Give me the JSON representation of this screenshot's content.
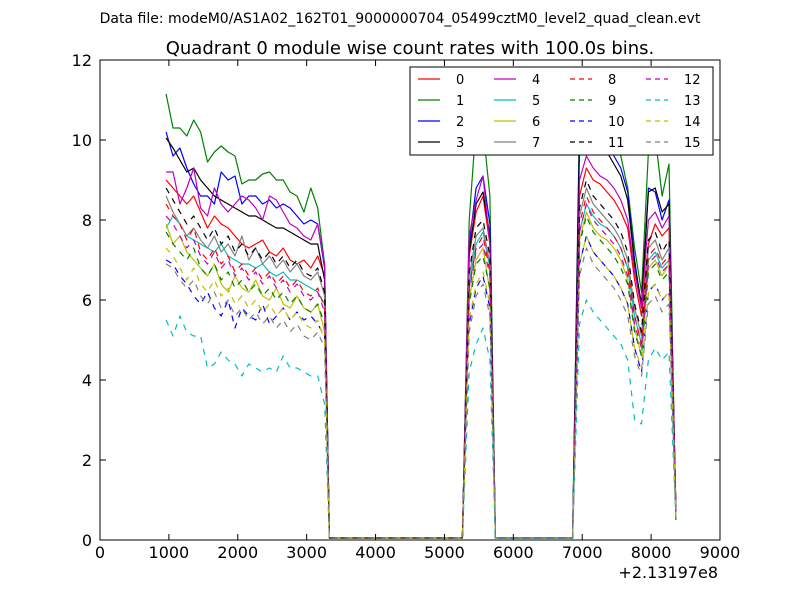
{
  "suptitle": "Data file: modeM0/AS1A02_162T01_9000000704_05499cztM0_level2_quad_clean.evt",
  "chart_data": {
    "type": "line",
    "title": "Quadrant 0 module wise count rates with 100.0s bins.",
    "xlabel": "",
    "ylabel": "",
    "x_offset_label": "+2.13197e8",
    "xlim": [
      0,
      9000
    ],
    "ylim": [
      0,
      12
    ],
    "xticks": [
      0,
      1000,
      2000,
      3000,
      4000,
      5000,
      6000,
      7000,
      8000,
      9000
    ],
    "yticks": [
      0,
      2,
      4,
      6,
      8,
      10,
      12
    ],
    "grid": false,
    "legend_position": "top-right",
    "x": [
      960,
      1060,
      1160,
      1260,
      1360,
      1460,
      1560,
      1660,
      1760,
      1860,
      1960,
      2060,
      2160,
      2260,
      2360,
      2460,
      2560,
      2660,
      2760,
      2860,
      2960,
      3060,
      3160,
      3260,
      3330,
      3380,
      5260,
      5360,
      5460,
      5560,
      5660,
      5740,
      6860,
      6960,
      7060,
      7160,
      7260,
      7360,
      7460,
      7560,
      7660,
      7760,
      7860,
      7960,
      8060,
      8160,
      8260,
      8360
    ],
    "series": [
      {
        "name": "0",
        "color": "#ff0000",
        "dash": "solid",
        "values": [
          9.0,
          8.8,
          8.6,
          8.4,
          8.6,
          8.2,
          7.8,
          8.1,
          7.9,
          7.8,
          7.6,
          7.4,
          7.3,
          7.4,
          7.5,
          7.2,
          7.1,
          7.3,
          7.0,
          6.9,
          7.0,
          6.8,
          7.1,
          6.6,
          0.05,
          0.05,
          0.05,
          7.1,
          8.2,
          8.6,
          7.4,
          0.05,
          0.05,
          8.6,
          9.3,
          9.0,
          8.9,
          8.7,
          8.5,
          8.2,
          7.8,
          6.5,
          5.6,
          7.4,
          7.9,
          7.6,
          7.8,
          0.8
        ]
      },
      {
        "name": "1",
        "color": "#008000",
        "dash": "solid",
        "values": [
          11.15,
          10.3,
          10.3,
          10.1,
          10.5,
          10.2,
          9.45,
          9.7,
          9.85,
          9.7,
          9.6,
          8.9,
          9.0,
          9.0,
          9.15,
          9.2,
          9.0,
          9.0,
          8.7,
          8.6,
          8.2,
          8.8,
          8.3,
          6.9,
          0.05,
          0.05,
          0.05,
          8.0,
          10.4,
          10.3,
          8.6,
          0.05,
          0.05,
          10.6,
          11.2,
          10.7,
          10.5,
          10.4,
          10.0,
          9.6,
          8.8,
          7.3,
          6.2,
          9.7,
          10.1,
          8.6,
          9.4,
          0.5
        ]
      },
      {
        "name": "2",
        "color": "#0000ff",
        "dash": "solid",
        "values": [
          10.2,
          9.6,
          9.8,
          9.3,
          8.9,
          8.6,
          8.6,
          8.4,
          9.2,
          9.0,
          9.1,
          8.4,
          8.6,
          8.6,
          8.4,
          8.5,
          8.3,
          8.4,
          8.3,
          8.1,
          7.9,
          8.0,
          7.9,
          6.8,
          0.05,
          0.05,
          0.05,
          7.4,
          8.8,
          9.1,
          7.9,
          0.05,
          0.05,
          10.2,
          10.9,
          10.3,
          10.1,
          9.9,
          9.6,
          9.3,
          8.7,
          7.0,
          5.8,
          8.8,
          8.7,
          8.0,
          8.5,
          0.7
        ]
      },
      {
        "name": "3",
        "color": "#000000",
        "dash": "solid",
        "values": [
          10.05,
          9.8,
          9.5,
          9.2,
          9.3,
          9.0,
          8.8,
          8.6,
          8.5,
          8.4,
          8.3,
          8.2,
          8.1,
          8.1,
          8.0,
          7.9,
          7.8,
          7.8,
          7.7,
          7.6,
          7.5,
          7.4,
          7.4,
          6.5,
          0.05,
          0.05,
          0.05,
          7.2,
          8.4,
          8.7,
          7.6,
          0.05,
          0.05,
          9.9,
          10.5,
          10.1,
          9.9,
          9.7,
          9.4,
          9.1,
          8.5,
          6.9,
          5.9,
          8.7,
          8.8,
          8.2,
          8.4,
          0.7
        ]
      },
      {
        "name": "4",
        "color": "#bf00bf",
        "dash": "solid",
        "values": [
          9.2,
          9.2,
          8.4,
          8.8,
          9.3,
          8.3,
          8.1,
          8.8,
          8.4,
          8.2,
          8.4,
          8.6,
          8.5,
          8.3,
          8.0,
          8.6,
          8.5,
          8.2,
          7.9,
          7.8,
          7.6,
          7.5,
          7.9,
          6.9,
          0.05,
          0.05,
          0.05,
          7.6,
          8.5,
          9.1,
          7.4,
          0.05,
          0.05,
          9.0,
          9.6,
          9.3,
          9.1,
          9.0,
          8.8,
          8.5,
          8.0,
          6.7,
          5.8,
          8.0,
          8.2,
          7.8,
          8.1,
          0.8
        ]
      },
      {
        "name": "5",
        "color": "#00bfbf",
        "dash": "solid",
        "values": [
          7.8,
          8.1,
          7.9,
          7.6,
          7.5,
          7.4,
          7.3,
          7.2,
          7.4,
          7.1,
          7.0,
          6.9,
          6.9,
          6.8,
          6.9,
          6.7,
          6.6,
          6.7,
          6.5,
          6.5,
          6.4,
          6.3,
          6.2,
          5.9,
          0.05,
          0.05,
          0.05,
          6.4,
          7.4,
          7.7,
          6.8,
          0.05,
          0.05,
          7.7,
          8.4,
          8.1,
          7.9,
          7.8,
          7.6,
          7.3,
          6.8,
          5.6,
          4.9,
          7.0,
          7.2,
          6.8,
          7.0,
          0.7
        ]
      },
      {
        "name": "6",
        "color": "#bfbf00",
        "dash": "solid",
        "values": [
          7.9,
          7.4,
          7.6,
          7.2,
          7.0,
          6.8,
          6.6,
          6.9,
          6.4,
          6.2,
          6.6,
          6.3,
          6.2,
          6.5,
          6.1,
          6.0,
          6.3,
          5.9,
          5.8,
          6.1,
          5.8,
          5.7,
          5.9,
          5.2,
          0.05,
          0.05,
          0.05,
          6.0,
          7.0,
          7.3,
          6.2,
          0.05,
          0.05,
          7.5,
          8.2,
          7.8,
          7.6,
          7.5,
          7.3,
          7.0,
          6.5,
          5.3,
          4.6,
          6.8,
          7.0,
          6.6,
          6.9,
          0.6
        ]
      },
      {
        "name": "7",
        "color": "#808080",
        "dash": "solid",
        "values": [
          8.6,
          8.2,
          7.9,
          7.6,
          7.8,
          7.5,
          7.3,
          7.6,
          7.2,
          7.4,
          7.1,
          7.6,
          7.0,
          7.3,
          6.9,
          7.1,
          6.8,
          7.0,
          6.7,
          6.9,
          6.6,
          6.5,
          6.7,
          6.1,
          0.05,
          0.05,
          0.05,
          6.6,
          7.6,
          7.8,
          6.9,
          0.05,
          0.05,
          8.1,
          8.8,
          8.4,
          8.2,
          8.0,
          7.8,
          7.5,
          7.0,
          5.8,
          5.1,
          7.3,
          7.5,
          7.0,
          7.3,
          0.7
        ]
      },
      {
        "name": "8",
        "color": "#ff0000",
        "dash": "dashed",
        "values": [
          8.4,
          8.1,
          7.9,
          7.5,
          7.8,
          7.2,
          7.0,
          7.3,
          6.9,
          7.1,
          6.7,
          6.9,
          6.6,
          6.8,
          6.5,
          6.7,
          6.4,
          6.6,
          6.3,
          6.5,
          6.2,
          6.1,
          6.3,
          5.8,
          0.05,
          0.05,
          0.05,
          6.3,
          7.3,
          7.6,
          6.7,
          0.05,
          0.05,
          7.9,
          8.6,
          8.2,
          8.0,
          7.8,
          7.6,
          7.3,
          6.8,
          5.6,
          4.9,
          7.1,
          7.3,
          6.9,
          7.1,
          0.7
        ]
      },
      {
        "name": "9",
        "color": "#008000",
        "dash": "dashed",
        "values": [
          7.7,
          7.4,
          7.2,
          7.0,
          7.3,
          6.8,
          6.6,
          6.9,
          6.5,
          6.7,
          6.3,
          6.5,
          6.2,
          6.4,
          6.1,
          6.3,
          6.0,
          6.2,
          5.9,
          6.1,
          5.8,
          5.7,
          5.9,
          5.4,
          0.05,
          0.05,
          0.05,
          5.9,
          6.9,
          7.1,
          6.3,
          0.05,
          0.05,
          7.4,
          8.1,
          7.7,
          7.5,
          7.3,
          7.1,
          6.8,
          6.4,
          5.2,
          4.6,
          6.7,
          6.9,
          6.5,
          6.7,
          0.6
        ]
      },
      {
        "name": "10",
        "color": "#0000ff",
        "dash": "dashed",
        "values": [
          7.0,
          6.9,
          6.6,
          6.4,
          6.1,
          5.9,
          6.2,
          5.8,
          5.6,
          6.0,
          5.3,
          5.8,
          5.6,
          5.5,
          5.9,
          5.4,
          5.6,
          5.8,
          5.5,
          5.7,
          5.5,
          5.6,
          5.4,
          5.1,
          0.05,
          0.05,
          0.05,
          5.4,
          6.3,
          6.6,
          5.8,
          0.05,
          0.05,
          6.9,
          7.6,
          7.2,
          7.0,
          6.8,
          6.6,
          6.3,
          5.9,
          4.8,
          4.2,
          6.2,
          6.4,
          6.0,
          6.2,
          0.6
        ]
      },
      {
        "name": "11",
        "color": "#000000",
        "dash": "dashed",
        "values": [
          8.8,
          8.5,
          8.2,
          7.9,
          8.1,
          7.8,
          7.5,
          7.8,
          7.4,
          7.6,
          7.2,
          7.4,
          7.1,
          7.3,
          7.0,
          7.2,
          6.9,
          7.1,
          6.8,
          7.0,
          6.7,
          6.6,
          6.8,
          6.2,
          0.05,
          0.05,
          0.05,
          6.7,
          7.8,
          8.0,
          7.1,
          0.05,
          0.05,
          8.3,
          9.0,
          8.6,
          8.4,
          8.2,
          8.0,
          7.7,
          7.2,
          5.9,
          5.2,
          7.5,
          7.7,
          7.2,
          7.5,
          0.7
        ]
      },
      {
        "name": "12",
        "color": "#bf00bf",
        "dash": "dashed",
        "values": [
          8.1,
          7.9,
          7.6,
          7.3,
          7.5,
          7.1,
          6.9,
          7.2,
          6.8,
          7.0,
          6.6,
          6.8,
          6.5,
          6.7,
          6.4,
          6.6,
          6.3,
          6.5,
          6.2,
          6.4,
          6.1,
          6.0,
          6.2,
          5.7,
          0.05,
          0.05,
          0.05,
          6.2,
          7.2,
          7.4,
          6.6,
          0.05,
          0.05,
          7.7,
          8.4,
          8.0,
          7.8,
          7.6,
          7.4,
          7.1,
          6.6,
          5.4,
          4.8,
          6.9,
          7.1,
          6.7,
          6.9,
          0.7
        ]
      },
      {
        "name": "13",
        "color": "#00bfbf",
        "dash": "dashed",
        "values": [
          5.5,
          5.1,
          5.6,
          5.2,
          5.1,
          5.1,
          4.3,
          4.4,
          4.7,
          4.5,
          4.4,
          4.1,
          4.4,
          4.3,
          4.2,
          4.3,
          4.2,
          4.6,
          4.3,
          4.3,
          4.2,
          4.1,
          4.1,
          3.4,
          0.05,
          0.05,
          0.05,
          4.2,
          4.9,
          5.3,
          4.5,
          0.05,
          0.05,
          5.4,
          6.0,
          5.7,
          5.5,
          5.3,
          5.1,
          4.9,
          4.5,
          3.0,
          2.9,
          4.5,
          4.8,
          4.5,
          4.7,
          0.5
        ]
      },
      {
        "name": "14",
        "color": "#bfbf00",
        "dash": "dashed",
        "values": [
          7.3,
          7.1,
          6.8,
          6.5,
          6.8,
          6.4,
          6.2,
          6.5,
          6.1,
          6.3,
          5.9,
          6.1,
          5.8,
          6.0,
          5.7,
          5.9,
          5.6,
          5.8,
          5.5,
          5.7,
          5.4,
          5.3,
          5.5,
          5.0,
          0.05,
          0.05,
          0.05,
          5.5,
          6.4,
          6.7,
          5.9,
          0.05,
          0.05,
          6.9,
          7.6,
          7.2,
          7.0,
          6.8,
          6.6,
          6.3,
          5.9,
          4.8,
          4.3,
          6.2,
          6.4,
          6.0,
          6.2,
          0.6
        ]
      },
      {
        "name": "15",
        "color": "#808080",
        "dash": "dashed",
        "values": [
          6.9,
          6.8,
          6.5,
          6.3,
          6.5,
          6.1,
          5.9,
          6.2,
          5.8,
          6.0,
          5.6,
          5.8,
          5.5,
          5.7,
          5.4,
          5.6,
          5.3,
          5.5,
          5.2,
          5.4,
          5.1,
          5.0,
          5.2,
          4.8,
          0.05,
          0.05,
          0.05,
          5.2,
          6.1,
          6.4,
          5.6,
          0.05,
          0.05,
          6.6,
          7.3,
          6.9,
          6.7,
          6.5,
          6.3,
          6.0,
          5.6,
          4.6,
          4.1,
          5.9,
          6.1,
          5.7,
          5.9,
          0.6
        ]
      }
    ]
  }
}
